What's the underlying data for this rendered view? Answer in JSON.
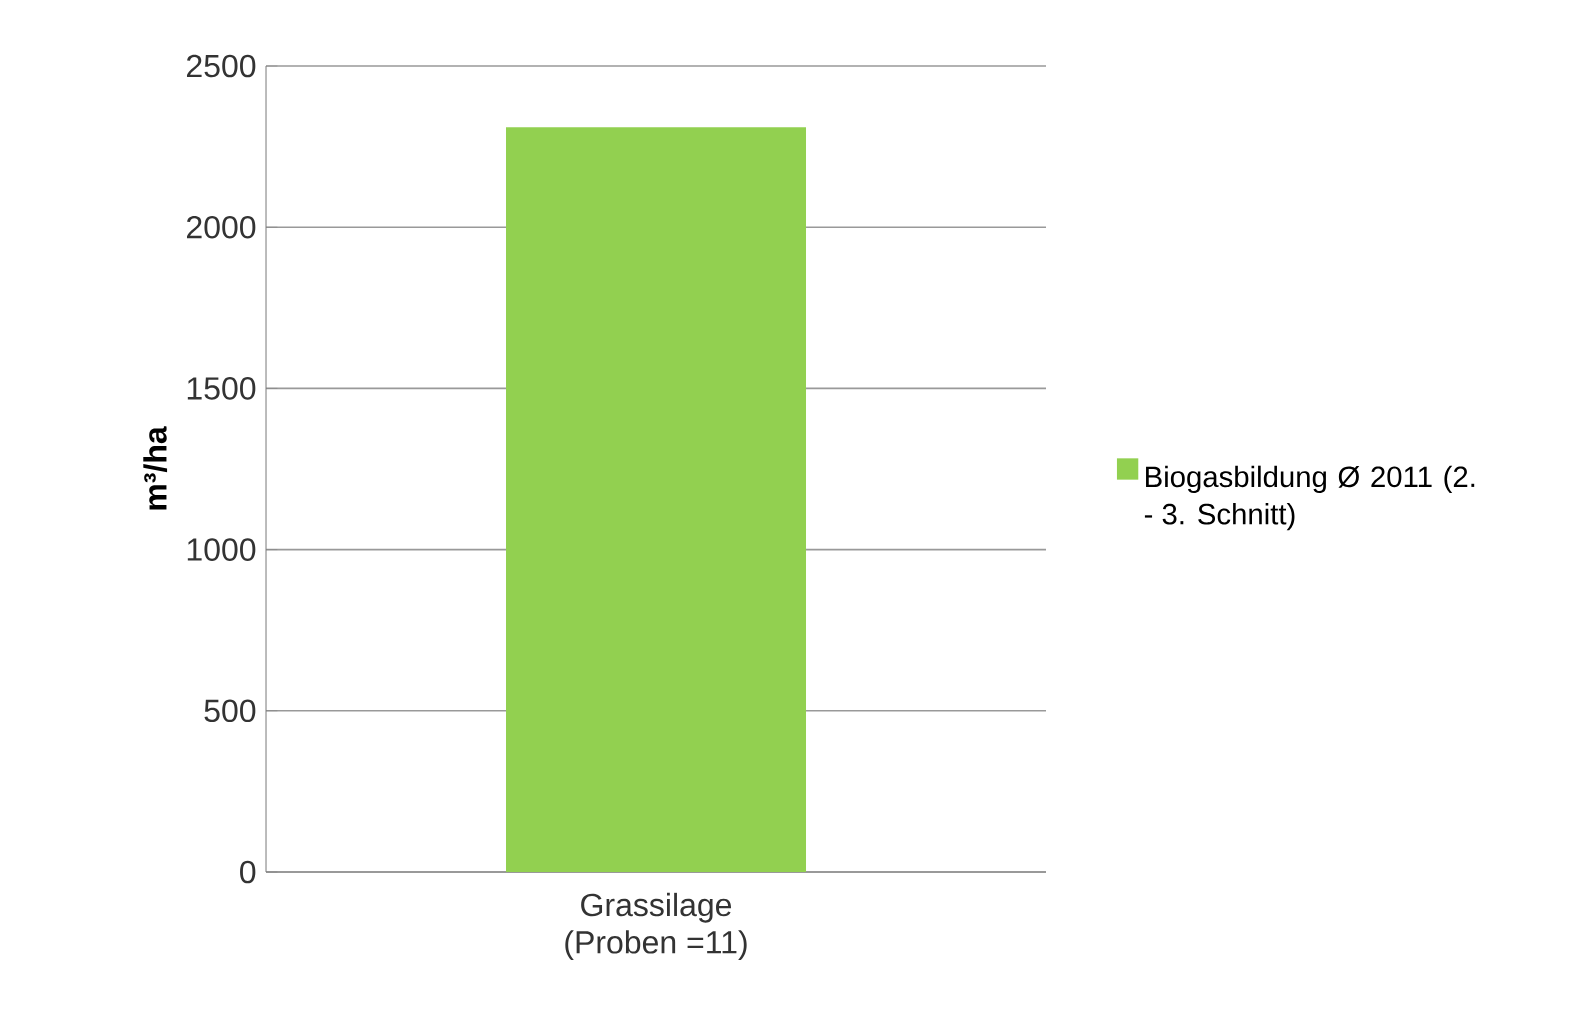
{
  "chart_data": {
    "type": "bar",
    "ylabel": "m³/ha",
    "categories": [
      "Grassilage (Proben =11)"
    ],
    "series": [
      {
        "name": "Biogasbildung Ø 2011 (2. - 3. Schnitt)",
        "color": "#92d050",
        "values": [
          2310
        ]
      }
    ],
    "ylim": [
      0,
      2500
    ],
    "yticks": [
      0,
      500,
      1000,
      1500,
      2000,
      2500
    ],
    "grid": "y",
    "legend": "right"
  }
}
